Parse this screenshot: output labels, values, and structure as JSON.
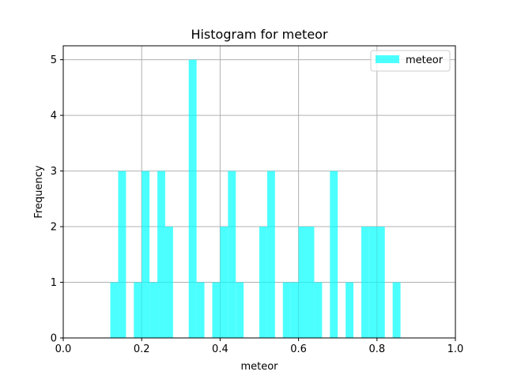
{
  "chart_data": {
    "type": "bar",
    "title": "Histogram for meteor",
    "xlabel": "meteor",
    "ylabel": "Frequency",
    "xlim": [
      0.0,
      1.0
    ],
    "ylim": [
      0,
      5.25
    ],
    "xticks": [
      "0.0",
      "0.2",
      "0.4",
      "0.6",
      "0.8",
      "1.0"
    ],
    "yticks": [
      "0",
      "1",
      "2",
      "3",
      "4",
      "5"
    ],
    "grid": true,
    "legend_position": "top-right",
    "bar_color": "#00ffff",
    "series": [
      {
        "name": "meteor",
        "bin_width": 0.02,
        "bins": [
          {
            "x": 0.12,
            "count": 1
          },
          {
            "x": 0.14,
            "count": 3
          },
          {
            "x": 0.18,
            "count": 1
          },
          {
            "x": 0.2,
            "count": 3
          },
          {
            "x": 0.22,
            "count": 1
          },
          {
            "x": 0.24,
            "count": 3
          },
          {
            "x": 0.26,
            "count": 2
          },
          {
            "x": 0.32,
            "count": 5
          },
          {
            "x": 0.34,
            "count": 1
          },
          {
            "x": 0.38,
            "count": 1
          },
          {
            "x": 0.4,
            "count": 2
          },
          {
            "x": 0.42,
            "count": 3
          },
          {
            "x": 0.44,
            "count": 1
          },
          {
            "x": 0.5,
            "count": 2
          },
          {
            "x": 0.52,
            "count": 3
          },
          {
            "x": 0.56,
            "count": 1
          },
          {
            "x": 0.58,
            "count": 1
          },
          {
            "x": 0.6,
            "count": 2
          },
          {
            "x": 0.62,
            "count": 2
          },
          {
            "x": 0.64,
            "count": 1
          },
          {
            "x": 0.68,
            "count": 3
          },
          {
            "x": 0.72,
            "count": 1
          },
          {
            "x": 0.76,
            "count": 2
          },
          {
            "x": 0.78,
            "count": 2
          },
          {
            "x": 0.8,
            "count": 2
          },
          {
            "x": 0.84,
            "count": 1
          }
        ]
      }
    ]
  }
}
